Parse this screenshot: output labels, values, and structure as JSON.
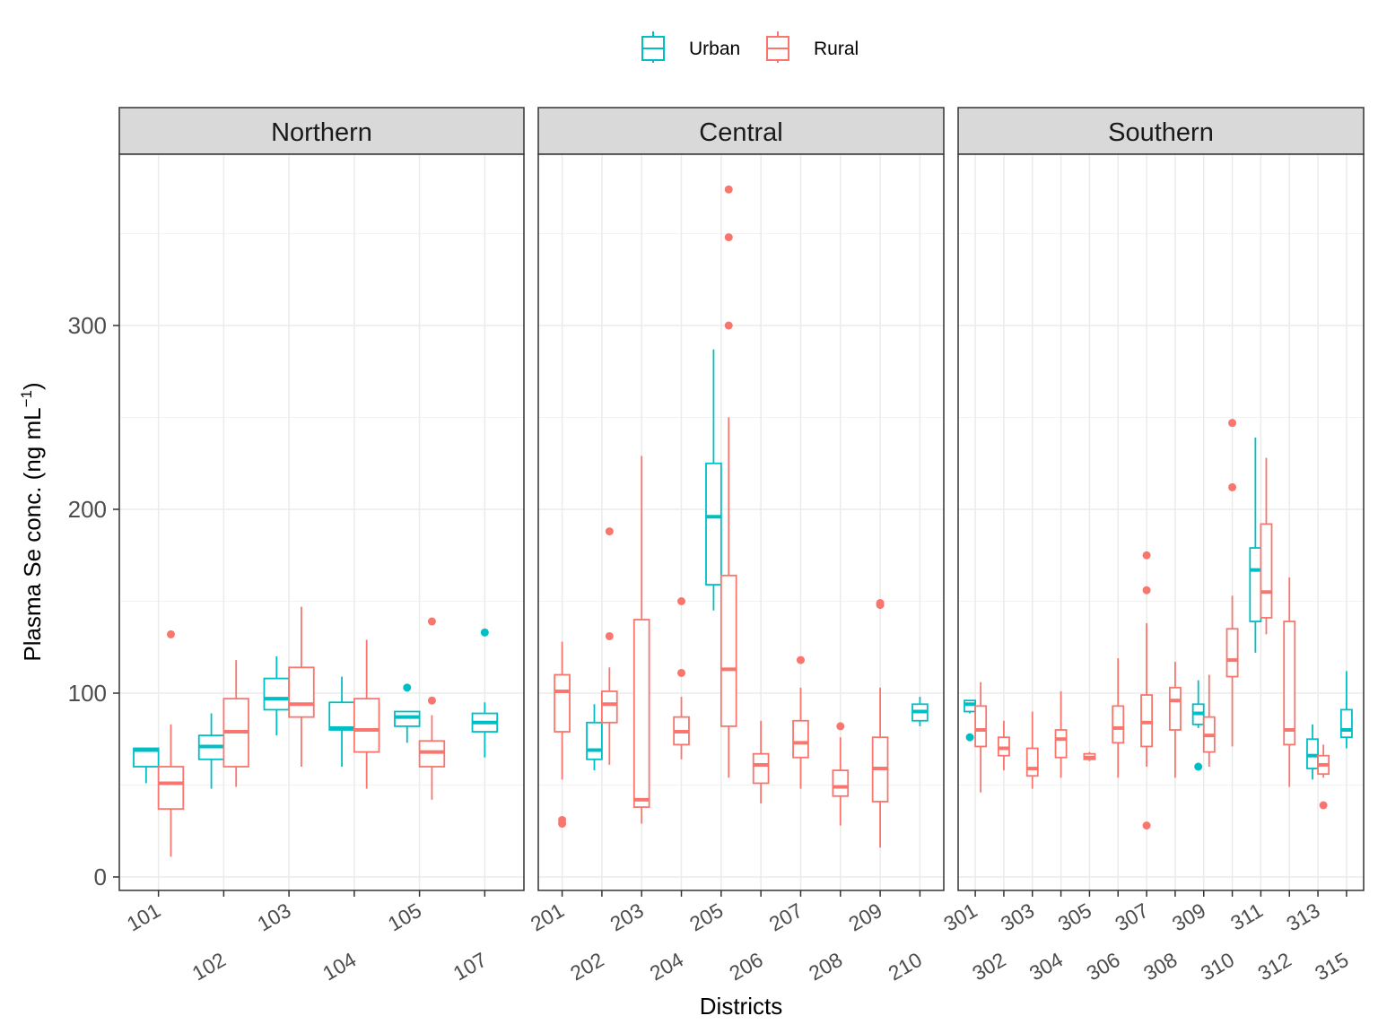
{
  "chart_data": {
    "type": "box",
    "ylabel_main": "Plasma Se conc. (ng  mL",
    "ylabel_sup": "−1",
    "ylabel_close": ")",
    "xlabel": "Districts",
    "ylim": [
      -8,
      385
    ],
    "yticks": [
      0,
      100,
      200,
      300
    ],
    "grid": true,
    "legend": {
      "placement": "top",
      "entries": [
        {
          "name": "Urban",
          "color": "#00BFC4"
        },
        {
          "name": "Rural",
          "color": "#F8766D"
        }
      ]
    },
    "panels": [
      {
        "name": "Northern",
        "categories": [
          "101",
          "102",
          "103",
          "104",
          "105",
          "107"
        ],
        "boxes": [
          {
            "district": "101",
            "series": "Urban",
            "lw": 51,
            "q1": 60,
            "med": 69,
            "q3": 70,
            "uw": 70,
            "outliers": []
          },
          {
            "district": "101",
            "series": "Rural",
            "lw": 11,
            "q1": 37,
            "med": 51,
            "q3": 60,
            "uw": 83,
            "outliers": [
              132
            ]
          },
          {
            "district": "102",
            "series": "Urban",
            "lw": 48,
            "q1": 64,
            "med": 71,
            "q3": 77,
            "uw": 89,
            "outliers": []
          },
          {
            "district": "102",
            "series": "Rural",
            "lw": 49,
            "q1": 60,
            "med": 79,
            "q3": 97,
            "uw": 118,
            "outliers": []
          },
          {
            "district": "103",
            "series": "Urban",
            "lw": 77,
            "q1": 91,
            "med": 97,
            "q3": 108,
            "uw": 120,
            "outliers": []
          },
          {
            "district": "103",
            "series": "Rural",
            "lw": 60,
            "q1": 87,
            "med": 94,
            "q3": 114,
            "uw": 147,
            "outliers": []
          },
          {
            "district": "104",
            "series": "Urban",
            "lw": 60,
            "q1": 80,
            "med": 81,
            "q3": 95,
            "uw": 109,
            "outliers": []
          },
          {
            "district": "104",
            "series": "Rural",
            "lw": 48,
            "q1": 68,
            "med": 80,
            "q3": 97,
            "uw": 129,
            "outliers": []
          },
          {
            "district": "105",
            "series": "Urban",
            "lw": 73,
            "q1": 82,
            "med": 87,
            "q3": 90,
            "uw": 90,
            "outliers": [
              103
            ]
          },
          {
            "district": "105",
            "series": "Rural",
            "lw": 42,
            "q1": 60,
            "med": 68,
            "q3": 74,
            "uw": 88,
            "outliers": [
              96,
              139
            ]
          },
          {
            "district": "107",
            "series": "Urban",
            "lw": 65,
            "q1": 79,
            "med": 84,
            "q3": 89,
            "uw": 95,
            "outliers": [
              133
            ]
          }
        ]
      },
      {
        "name": "Central",
        "categories": [
          "201",
          "202",
          "203",
          "204",
          "205",
          "206",
          "207",
          "208",
          "209",
          "210"
        ],
        "boxes": [
          {
            "district": "201",
            "series": "Rural",
            "lw": 53,
            "q1": 79,
            "med": 101,
            "q3": 110,
            "uw": 128,
            "outliers": [
              29,
              31
            ]
          },
          {
            "district": "202",
            "series": "Urban",
            "lw": 58,
            "q1": 64,
            "med": 69,
            "q3": 84,
            "uw": 94,
            "outliers": []
          },
          {
            "district": "202",
            "series": "Rural",
            "lw": 61,
            "q1": 84,
            "med": 94,
            "q3": 101,
            "uw": 114,
            "outliers": [
              131,
              188
            ]
          },
          {
            "district": "203",
            "series": "Rural",
            "lw": 29,
            "q1": 38,
            "med": 42,
            "q3": 140,
            "uw": 229,
            "outliers": []
          },
          {
            "district": "204",
            "series": "Rural",
            "lw": 64,
            "q1": 72,
            "med": 79,
            "q3": 87,
            "uw": 98,
            "outliers": [
              111,
              150
            ]
          },
          {
            "district": "205",
            "series": "Urban",
            "lw": 145,
            "q1": 159,
            "med": 196,
            "q3": 225,
            "uw": 287,
            "outliers": []
          },
          {
            "district": "205",
            "series": "Rural",
            "lw": 54,
            "q1": 82,
            "med": 113,
            "q3": 164,
            "uw": 250,
            "outliers": [
              300,
              348,
              374
            ]
          },
          {
            "district": "206",
            "series": "Rural",
            "lw": 40,
            "q1": 51,
            "med": 61,
            "q3": 67,
            "uw": 85,
            "outliers": []
          },
          {
            "district": "207",
            "series": "Rural",
            "lw": 48,
            "q1": 65,
            "med": 73,
            "q3": 85,
            "uw": 103,
            "outliers": [
              118
            ]
          },
          {
            "district": "208",
            "series": "Rural",
            "lw": 28,
            "q1": 44,
            "med": 49,
            "q3": 58,
            "uw": 76,
            "outliers": [
              82
            ]
          },
          {
            "district": "209",
            "series": "Rural",
            "lw": 16,
            "q1": 41,
            "med": 59,
            "q3": 76,
            "uw": 103,
            "outliers": [
              148,
              149
            ]
          },
          {
            "district": "210",
            "series": "Urban",
            "lw": 82,
            "q1": 85,
            "med": 90,
            "q3": 94,
            "uw": 98,
            "outliers": []
          }
        ]
      },
      {
        "name": "Southern",
        "categories": [
          "301",
          "302",
          "303",
          "304",
          "305",
          "306",
          "307",
          "308",
          "309",
          "310",
          "311",
          "312",
          "313",
          "315"
        ],
        "boxes": [
          {
            "district": "301",
            "series": "Urban",
            "lw": 89,
            "q1": 90,
            "med": 94,
            "q3": 96,
            "uw": 96,
            "outliers": [
              76
            ]
          },
          {
            "district": "301",
            "series": "Rural",
            "lw": 46,
            "q1": 71,
            "med": 80,
            "q3": 93,
            "uw": 106,
            "outliers": []
          },
          {
            "district": "302",
            "series": "Rural",
            "lw": 58,
            "q1": 66,
            "med": 70,
            "q3": 76,
            "uw": 85,
            "outliers": []
          },
          {
            "district": "303",
            "series": "Rural",
            "lw": 48,
            "q1": 55,
            "med": 59,
            "q3": 70,
            "uw": 90,
            "outliers": []
          },
          {
            "district": "304",
            "series": "Rural",
            "lw": 54,
            "q1": 65,
            "med": 75,
            "q3": 80,
            "uw": 101,
            "outliers": []
          },
          {
            "district": "305",
            "series": "Rural",
            "lw": 63,
            "q1": 64,
            "med": 65,
            "q3": 67,
            "uw": 68,
            "outliers": []
          },
          {
            "district": "306",
            "series": "Rural",
            "lw": 54,
            "q1": 73,
            "med": 81,
            "q3": 93,
            "uw": 119,
            "outliers": []
          },
          {
            "district": "307",
            "series": "Rural",
            "lw": 60,
            "q1": 71,
            "med": 84,
            "q3": 99,
            "uw": 138,
            "outliers": [
              28,
              156,
              175
            ]
          },
          {
            "district": "308",
            "series": "Rural",
            "lw": 54,
            "q1": 80,
            "med": 96,
            "q3": 103,
            "uw": 117,
            "outliers": []
          },
          {
            "district": "309",
            "series": "Urban",
            "lw": 81,
            "q1": 83,
            "med": 89,
            "q3": 94,
            "uw": 107,
            "outliers": [
              60
            ]
          },
          {
            "district": "309",
            "series": "Rural",
            "lw": 60,
            "q1": 68,
            "med": 77,
            "q3": 87,
            "uw": 110,
            "outliers": []
          },
          {
            "district": "310",
            "series": "Rural",
            "lw": 71,
            "q1": 109,
            "med": 118,
            "q3": 135,
            "uw": 153,
            "outliers": [
              212,
              247
            ]
          },
          {
            "district": "311",
            "series": "Urban",
            "lw": 122,
            "q1": 139,
            "med": 167,
            "q3": 179,
            "uw": 239,
            "outliers": []
          },
          {
            "district": "311",
            "series": "Rural",
            "lw": 132,
            "q1": 141,
            "med": 155,
            "q3": 192,
            "uw": 228,
            "outliers": []
          },
          {
            "district": "312",
            "series": "Rural",
            "lw": 49,
            "q1": 72,
            "med": 80,
            "q3": 139,
            "uw": 163,
            "outliers": []
          },
          {
            "district": "313",
            "series": "Urban",
            "lw": 53,
            "q1": 59,
            "med": 66,
            "q3": 75,
            "uw": 83,
            "outliers": []
          },
          {
            "district": "313",
            "series": "Rural",
            "lw": 54,
            "q1": 56,
            "med": 61,
            "q3": 66,
            "uw": 72,
            "outliers": [
              39
            ]
          },
          {
            "district": "315",
            "series": "Urban",
            "lw": 70,
            "q1": 76,
            "med": 80,
            "q3": 91,
            "uw": 112,
            "outliers": []
          }
        ]
      }
    ]
  }
}
